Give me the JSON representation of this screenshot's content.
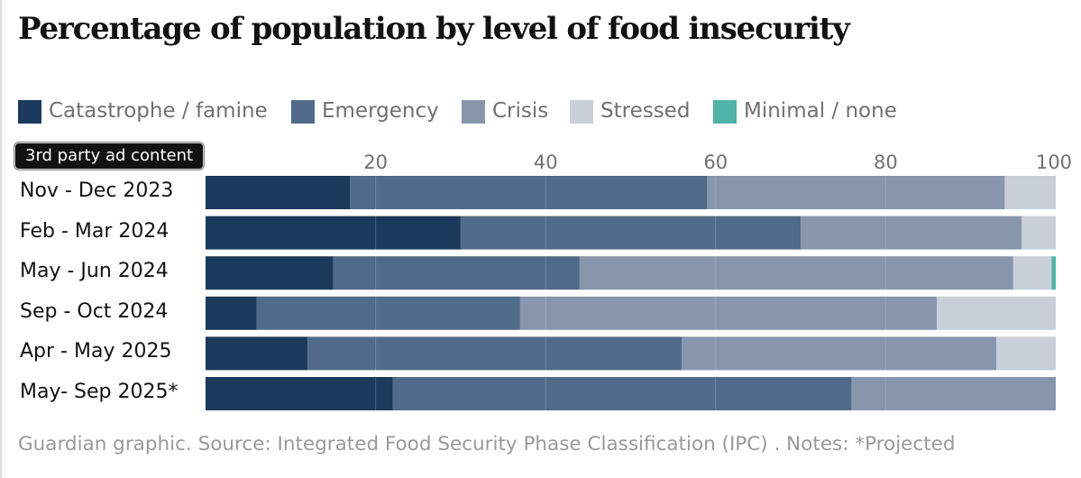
{
  "title": "Percentage of population by level of food insecurity",
  "ad_badge": "3rd party ad content",
  "footer": "Guardian graphic. Source: Integrated Food Security Phase Classification (IPC) . Notes: *Projected",
  "legend": [
    {
      "label": "Catastrophe / famine",
      "color": "#1b3a5c"
    },
    {
      "label": "Emergency",
      "color": "#516a89"
    },
    {
      "label": "Crisis",
      "color": "#8796ad"
    },
    {
      "label": "Stressed",
      "color": "#c9cfd8"
    },
    {
      "label": "Minimal / none",
      "color": "#4fb3a9"
    }
  ],
  "chart_data": {
    "type": "bar",
    "orientation": "horizontal",
    "stacked": true,
    "title": "Percentage of population by level of food insecurity",
    "xlim": [
      0,
      100
    ],
    "xticks": [
      20,
      40,
      60,
      80,
      100
    ],
    "categories": [
      "Nov - Dec 2023",
      "Feb - Mar 2024",
      "May - Jun 2024",
      "Sep - Oct 2024",
      "Apr - May 2025",
      "May- Sep 2025*"
    ],
    "series": [
      {
        "name": "Catastrophe / famine",
        "color": "#1b3a5c",
        "values": [
          17,
          30,
          15,
          6,
          12,
          22
        ]
      },
      {
        "name": "Emergency",
        "color": "#516a89",
        "values": [
          42,
          40,
          29,
          31,
          44,
          54
        ]
      },
      {
        "name": "Crisis",
        "color": "#8796ad",
        "values": [
          35,
          26,
          51,
          49,
          37,
          24
        ]
      },
      {
        "name": "Stressed",
        "color": "#c9cfd8",
        "values": [
          6,
          4,
          4.5,
          14,
          7,
          0
        ]
      },
      {
        "name": "Minimal / none",
        "color": "#4fb3a9",
        "values": [
          0,
          0,
          0.5,
          0,
          0,
          0
        ]
      }
    ]
  }
}
